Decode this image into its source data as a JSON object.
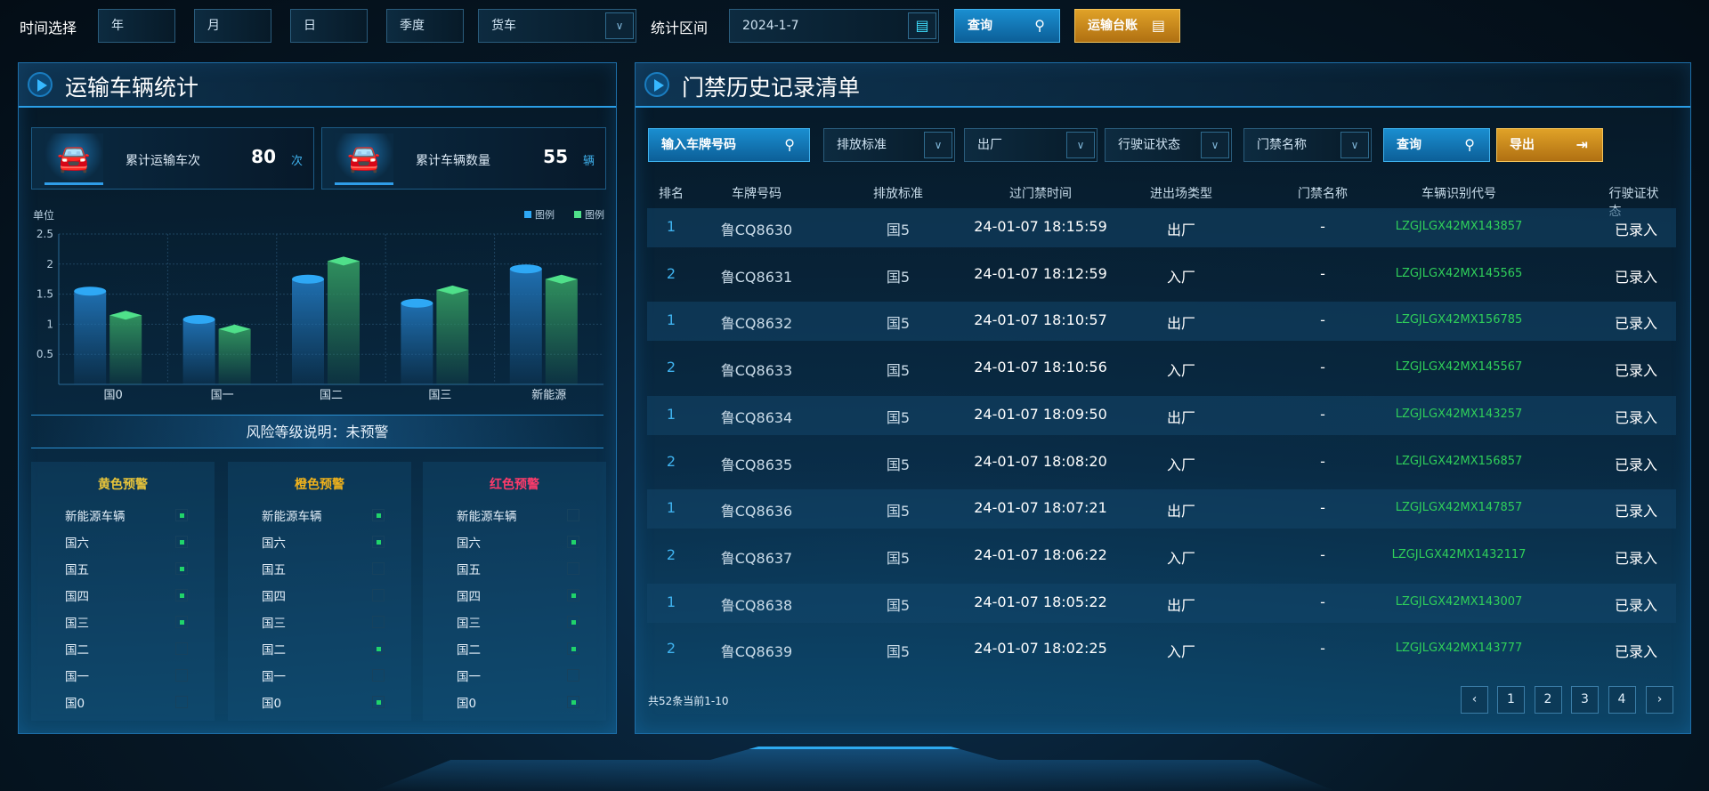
{
  "toolbar": {
    "time_label": "时间选择",
    "year": "年",
    "month": "月",
    "day": "日",
    "quarter": "季度",
    "vehicle_type": "货车",
    "range_label": "统计区间",
    "date": "2024-1-7",
    "query": "查询",
    "ledger": "运输台账"
  },
  "left": {
    "title": "运输车辆统计",
    "kpis": [
      {
        "label": "累计运输车次",
        "value": "80",
        "unit": "次"
      },
      {
        "label": "累计车辆数量",
        "value": "55",
        "unit": "辆"
      }
    ],
    "risk_title": "风险等级说明：未预警",
    "risk_columns": [
      {
        "title": "黄色预警",
        "color": "#e8c43a",
        "rows": [
          {
            "label": "新能源车辆",
            "on": true
          },
          {
            "label": "国六",
            "on": true
          },
          {
            "label": "国五",
            "on": true
          },
          {
            "label": "国四",
            "on": true
          },
          {
            "label": "国三",
            "on": true
          },
          {
            "label": "国二",
            "on": false
          },
          {
            "label": "国一",
            "on": false
          },
          {
            "label": "国0",
            "on": false
          }
        ]
      },
      {
        "title": "橙色预警",
        "color": "#f0b21c",
        "rows": [
          {
            "label": "新能源车辆",
            "on": true
          },
          {
            "label": "国六",
            "on": true
          },
          {
            "label": "国五",
            "on": false
          },
          {
            "label": "国四",
            "on": false
          },
          {
            "label": "国三",
            "on": false
          },
          {
            "label": "国二",
            "on": true
          },
          {
            "label": "国一",
            "on": false
          },
          {
            "label": "国0",
            "on": true
          }
        ]
      },
      {
        "title": "红色预警",
        "color": "#ff3b6b",
        "rows": [
          {
            "label": "新能源车辆",
            "on": false
          },
          {
            "label": "国六",
            "on": true
          },
          {
            "label": "国五",
            "on": false
          },
          {
            "label": "国四",
            "on": true
          },
          {
            "label": "国三",
            "on": true
          },
          {
            "label": "国二",
            "on": true
          },
          {
            "label": "国一",
            "on": false
          },
          {
            "label": "国0",
            "on": true
          }
        ]
      }
    ]
  },
  "chart_data": {
    "type": "bar",
    "ylabel": "单位",
    "categories": [
      "国0",
      "国一",
      "国二",
      "国三",
      "新能源"
    ],
    "ylim": [
      0,
      2.5
    ],
    "yticks": [
      "0.5",
      "1",
      "1.5",
      "2",
      "2.5"
    ],
    "grid": true,
    "legend_position": "top-right",
    "series": [
      {
        "name": "图例",
        "color": "#2ea8f5",
        "values": [
          1.55,
          1.08,
          1.75,
          1.35,
          1.92
        ]
      },
      {
        "name": "图例",
        "color": "#4fe08a",
        "values": [
          1.15,
          0.92,
          2.05,
          1.57,
          1.75
        ]
      }
    ]
  },
  "right": {
    "title": "门禁历史记录清单",
    "filters": {
      "plate_placeholder": "输入车牌号码",
      "emission": "排放标准",
      "direction": "出厂",
      "license_status": "行驶证状态",
      "gate_name": "门禁名称",
      "query": "查询",
      "export": "导出"
    },
    "columns": [
      "排名",
      "车牌号码",
      "排放标准",
      "过门禁时间",
      "进出场类型",
      "门禁名称",
      "车辆识别代号",
      "行驶证状态"
    ],
    "rows": [
      [
        "1",
        "鲁CQ8630",
        "国5",
        "24-01-07 18:15:59",
        "出厂",
        "-",
        "LZGJLGX42MX143857",
        "已录入"
      ],
      [
        "2",
        "鲁CQ8631",
        "国5",
        "24-01-07 18:12:59",
        "入厂",
        "-",
        "LZGJLGX42MX145565",
        "已录入"
      ],
      [
        "1",
        "鲁CQ8632",
        "国5",
        "24-01-07 18:10:57",
        "出厂",
        "-",
        "LZGJLGX42MX156785",
        "已录入"
      ],
      [
        "2",
        "鲁CQ8633",
        "国5",
        "24-01-07 18:10:56",
        "入厂",
        "-",
        "LZGJLGX42MX145567",
        "已录入"
      ],
      [
        "1",
        "鲁CQ8634",
        "国5",
        "24-01-07 18:09:50",
        "出厂",
        "-",
        "LZGJLGX42MX143257",
        "已录入"
      ],
      [
        "2",
        "鲁CQ8635",
        "国5",
        "24-01-07 18:08:20",
        "入厂",
        "-",
        "LZGJLGX42MX156857",
        "已录入"
      ],
      [
        "1",
        "鲁CQ8636",
        "国5",
        "24-01-07 18:07:21",
        "出厂",
        "-",
        "LZGJLGX42MX147857",
        "已录入"
      ],
      [
        "2",
        "鲁CQ8637",
        "国5",
        "24-01-07 18:06:22",
        "入厂",
        "-",
        "LZGJLGX42MX1432117",
        "已录入"
      ],
      [
        "1",
        "鲁CQ8638",
        "国5",
        "24-01-07 18:05:22",
        "出厂",
        "-",
        "LZGJLGX42MX143007",
        "已录入"
      ],
      [
        "2",
        "鲁CQ8639",
        "国5",
        "24-01-07 18:02:25",
        "入厂",
        "-",
        "LZGJLGX42MX143777",
        "已录入"
      ]
    ],
    "pagination": {
      "summary": "共52条当前1-10",
      "prev": "‹",
      "pages": [
        "1",
        "2",
        "3",
        "4"
      ],
      "next": "›"
    }
  }
}
